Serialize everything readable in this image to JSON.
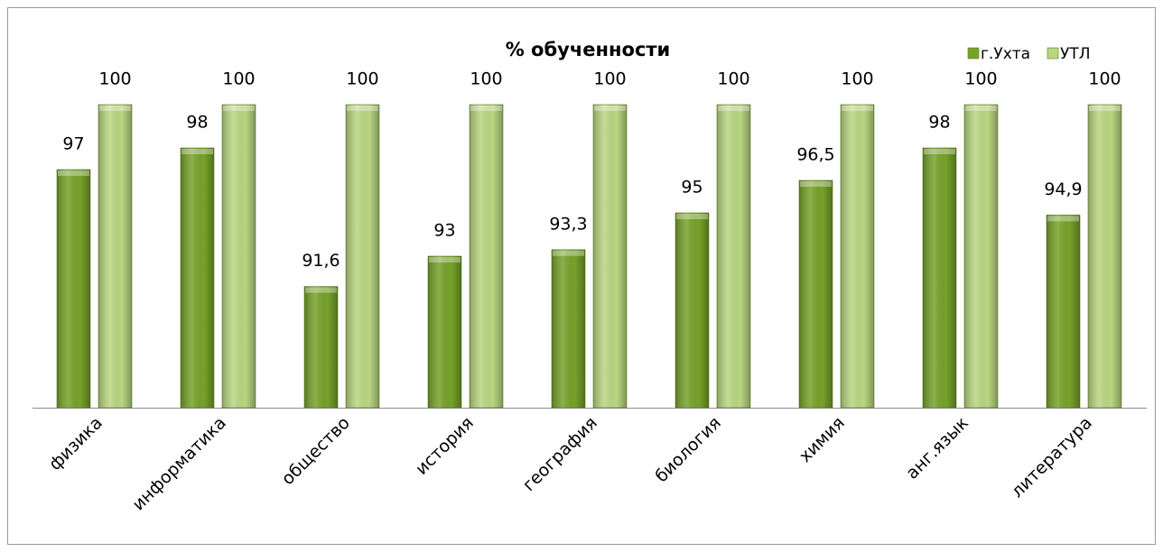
{
  "chart_data": {
    "type": "bar",
    "title": "% обученности",
    "categories": [
      "физика",
      "информатика",
      "общество",
      "история",
      "география",
      "биология",
      "химия",
      "анг.язык",
      "литература"
    ],
    "series": [
      {
        "name": "г.Ухта",
        "color": "#76a22a",
        "values": [
          97,
          98,
          91.6,
          93,
          93.3,
          95,
          96.5,
          98,
          94.9
        ],
        "value_labels": [
          "97",
          "98",
          "91,6",
          "93",
          "93,3",
          "95",
          "96,5",
          "98",
          "94,9"
        ]
      },
      {
        "name": "УТЛ",
        "color": "#b9d681",
        "values": [
          100,
          100,
          100,
          100,
          100,
          100,
          100,
          100,
          100
        ]
      }
    ],
    "ylim": [
      86,
      100
    ],
    "legend": "top-right"
  }
}
